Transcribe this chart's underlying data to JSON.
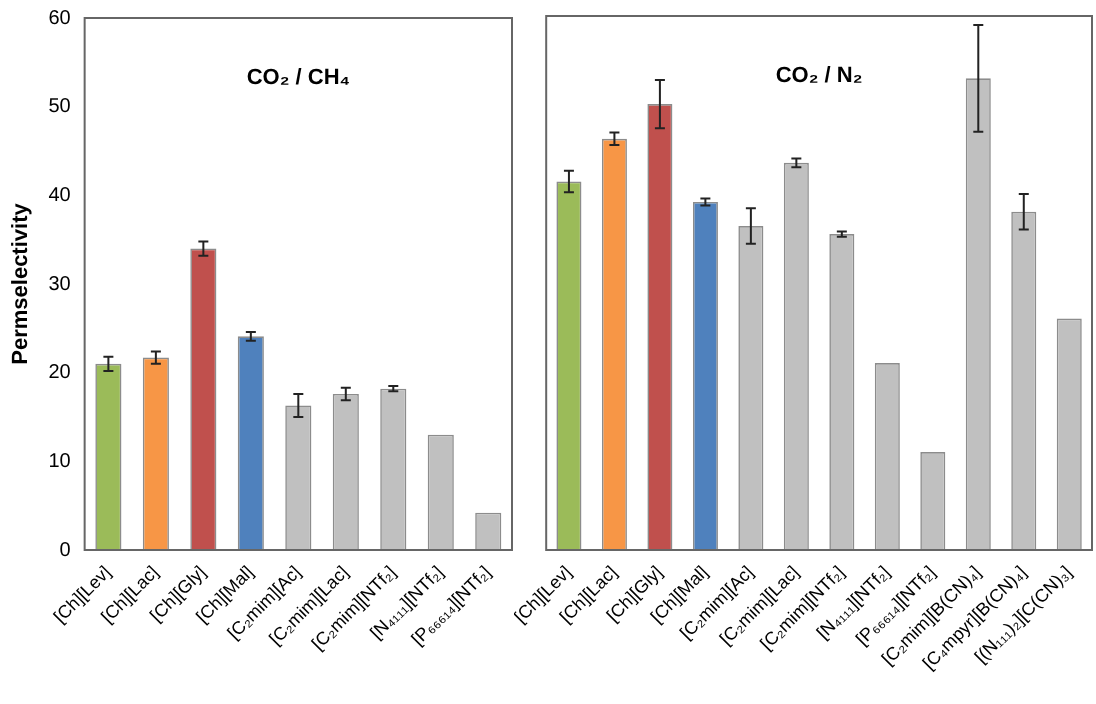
{
  "chart_data": [
    {
      "type": "bar",
      "title": "CO₂ / CH₄",
      "ylabel": "Permselectivity",
      "categories": [
        "[Ch][Lev]",
        "[Ch][Lac]",
        "[Ch][Gly]",
        "[Ch][Mal]",
        "[C₂mim][Ac]",
        "[C₂mim][Lac]",
        "[C₂mim][NTf₂]",
        "[N₄₁₁₁][NTf₂]",
        "[P₆₆₆₁₄][NTf₂]"
      ],
      "values": [
        21,
        21.7,
        34,
        24.1,
        16.3,
        17.6,
        18.2,
        13,
        4.2
      ],
      "errors": [
        0.8,
        0.7,
        0.8,
        0.5,
        1.3,
        0.7,
        0.3,
        null,
        null
      ],
      "colors": [
        "#9bbb59",
        "#f79646",
        "#c0504d",
        "#4f81bd",
        "#c0c0c0",
        "#c0c0c0",
        "#c0c0c0",
        "#c0c0c0",
        "#c0c0c0"
      ],
      "ylim": [
        0,
        60
      ],
      "yticks": [
        0,
        10,
        20,
        30,
        40,
        50,
        60
      ],
      "grid": false
    },
    {
      "type": "bar",
      "title": "CO₂ / N₂",
      "categories": [
        "[Ch][Lev]",
        "[Ch][Lac]",
        "[Ch][Gly]",
        "[Ch][Mal]",
        "[C₂mim][Ac]",
        "[C₂mim][Lac]",
        "[C₂mim][NTf₂]",
        "[N₄₁₁₁][NTf₂]",
        "[P₆₆₆₁₄][NTf₂]",
        "[C₂mim][B(CN)₄]",
        "[C₄mpyr][B(CN)₄]",
        "[(N₁₁₁)₂][C(CN)₃]"
      ],
      "values": [
        41.4,
        46.2,
        50.1,
        39.1,
        36.4,
        43.5,
        35.5,
        21,
        11,
        53,
        38,
        26
      ],
      "errors": [
        1.2,
        0.7,
        2.7,
        0.4,
        2,
        0.5,
        0.3,
        null,
        null,
        6,
        2,
        null
      ],
      "colors": [
        "#9bbb59",
        "#f79646",
        "#c0504d",
        "#4f81bd",
        "#c0c0c0",
        "#c0c0c0",
        "#c0c0c0",
        "#c0c0c0",
        "#c0c0c0",
        "#c0c0c0",
        "#c0c0c0",
        "#c0c0c0"
      ],
      "ylim": [
        0,
        60
      ],
      "yticks": [
        0,
        10,
        20,
        30,
        40,
        50,
        60
      ],
      "grid": false,
      "tick_labels": "x"
    }
  ]
}
